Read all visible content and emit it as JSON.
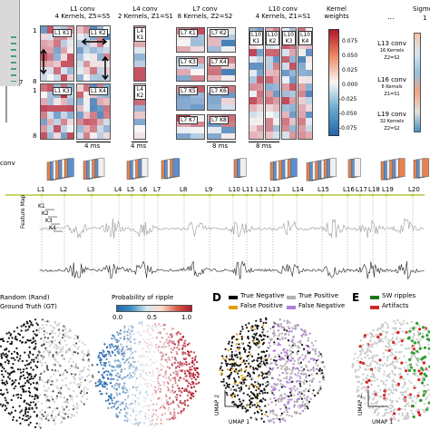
{
  "panel_letters": {
    "d": "D",
    "e": "E"
  },
  "kernels": {
    "l1": {
      "title": "L1 conv",
      "subtitle": "4 Kernels, Z5=S5",
      "cells": [
        "L1 K1",
        "L1 K2",
        "L1 K3",
        "L1 K4"
      ],
      "scale": "4 ms",
      "rows_top": [
        "1",
        "8"
      ],
      "rows_bottom": [
        "1",
        "8"
      ]
    },
    "l4": {
      "title": "L4 conv",
      "subtitle": "2 Kernels, Z1=S1",
      "cells": [
        "L4 K1",
        "L4 K2"
      ],
      "scale": "4 ms"
    },
    "l7": {
      "title": "L7 conv",
      "subtitle": "8 Kernels, Z2=S2",
      "cells": [
        "L7 K1",
        "L7 K2",
        "L7 K3",
        "L7 K4",
        "L7 K5",
        "L7 K6",
        "L7 K7",
        "L7 K8"
      ],
      "scale": "8 ms"
    },
    "l10": {
      "title": "L10 conv",
      "subtitle": "4 Kernels, Z1=S1",
      "cells": [
        "L10 K1",
        "L10 K2",
        "L10 K3",
        "L10 K4"
      ],
      "scale": "8 ms"
    },
    "colorbar": {
      "title": "Kernel weights",
      "ticks": [
        "0.075",
        "0.050",
        "0.025",
        "0.000",
        "-0.025",
        "-0.050",
        "-0.075"
      ]
    },
    "ellipsis": "...",
    "later": [
      {
        "name": "L13 conv",
        "sub1": "16 Kernels",
        "sub2": "Z2=S2"
      },
      {
        "name": "L16 conv",
        "sub1": "6 Kernels",
        "sub2": "Z1=S1"
      },
      {
        "name": "L19 conv",
        "sub1": "32 Kernels",
        "sub2": "Z2=S2"
      }
    ],
    "edge_label": "Sigmo",
    "edge_num": "1",
    "left_num": "7",
    "left_conv": "conv"
  },
  "layers": {
    "labels": [
      "L1",
      "L2",
      "L3",
      "L4",
      "L5",
      "L6",
      "L7",
      "L8",
      "L9",
      "L10",
      "L11",
      "L12",
      "L13",
      "L14",
      "L15",
      "L16",
      "L17",
      "L18",
      "L19",
      "L20"
    ],
    "k_labels": [
      "K1",
      "K2",
      "K3",
      "K4"
    ],
    "axis_label": "Feature Map"
  },
  "umap": {
    "left_legend": [
      "Random (Rand)",
      "Ground Truth (GT)"
    ],
    "ripple_title": "Probability of ripple",
    "ripple_ticks": [
      "0.0",
      "0.5",
      "1.0"
    ],
    "d_legend": [
      {
        "label": "True Negative",
        "color": "#000000"
      },
      {
        "label": "True Positive",
        "color": "#b0b0b0"
      },
      {
        "label": "False Positive",
        "color": "#e69f00"
      },
      {
        "label": "False Negative",
        "color": "#b07cd8"
      }
    ],
    "e_legend": [
      {
        "label": "SW ripples",
        "color": "#1a7a1a"
      },
      {
        "label": "Artifacts",
        "color": "#d62728"
      }
    ],
    "axis_x": "UMAP 1",
    "axis_y": "UMAP 2"
  }
}
